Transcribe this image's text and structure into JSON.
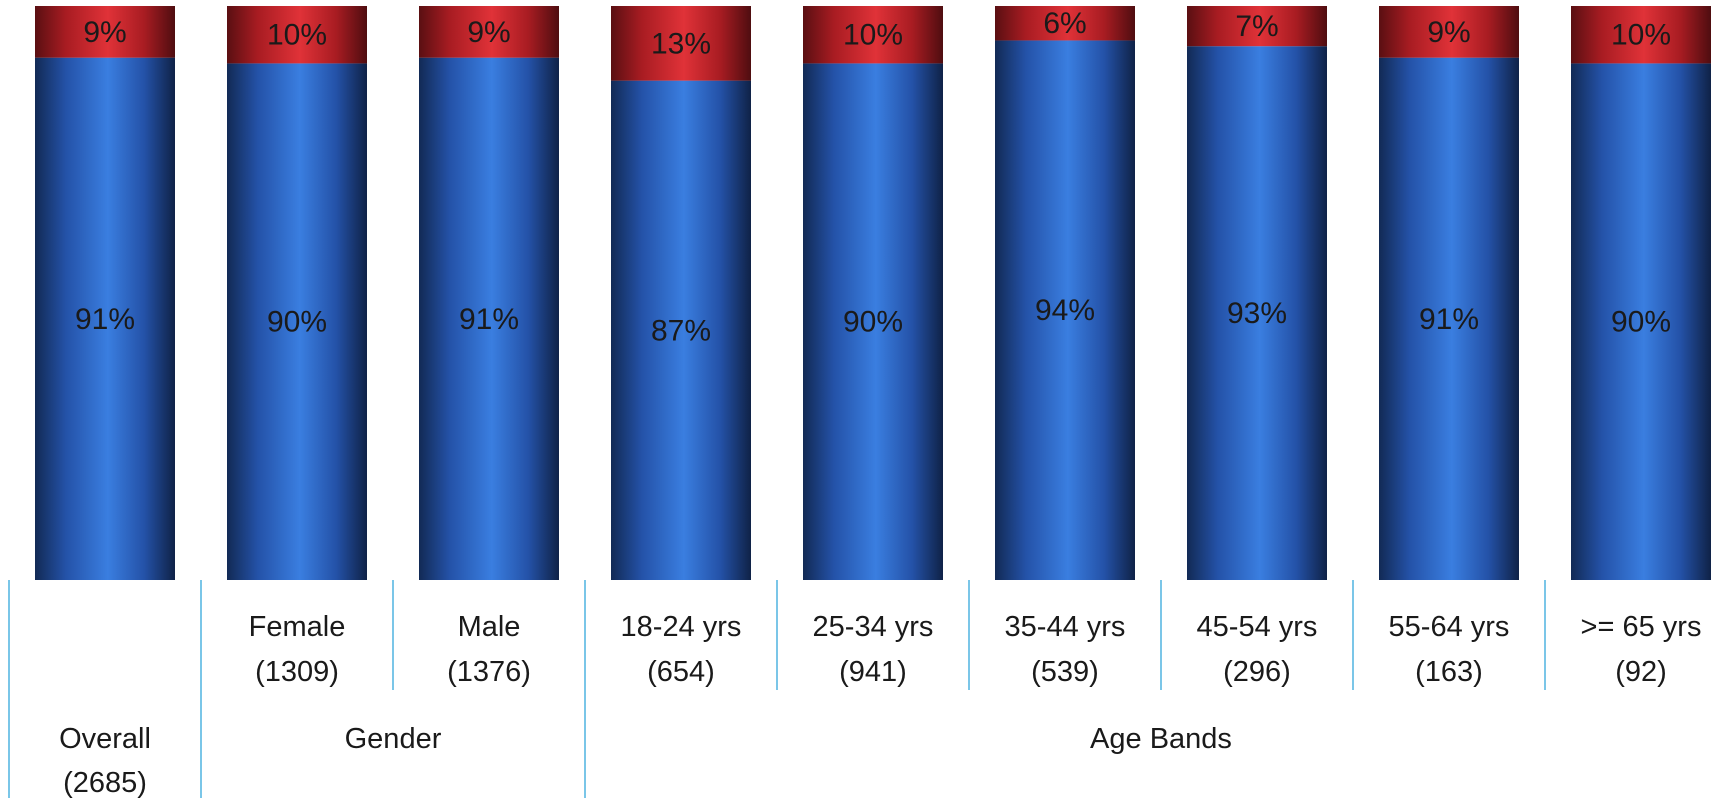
{
  "chart_data": {
    "type": "bar",
    "stacked": true,
    "percent_stacked": true,
    "categories": [
      {
        "line1": "",
        "line2": "",
        "group_label_1": "Overall",
        "group_label_2": "(2685)"
      },
      {
        "line1": "Female",
        "line2": "(1309)"
      },
      {
        "line1": "Male",
        "line2": "(1376)"
      },
      {
        "line1": "18-24 yrs",
        "line2": "(654)"
      },
      {
        "line1": "25-34 yrs",
        "line2": "(941)"
      },
      {
        "line1": "35-44 yrs",
        "line2": "(539)"
      },
      {
        "line1": "45-54 yrs",
        "line2": "(296)"
      },
      {
        "line1": "55-64 yrs",
        "line2": "(163)"
      },
      {
        "line1": ">= 65 yrs",
        "line2": "(92)"
      }
    ],
    "groups": [
      {
        "label": "Gender",
        "span": [
          1,
          2
        ]
      },
      {
        "label": "Age Bands",
        "span": [
          3,
          8
        ]
      }
    ],
    "series": [
      {
        "color": "#2f6fd6",
        "values": [
          91,
          90,
          91,
          87,
          90,
          94,
          93,
          91,
          90
        ],
        "labels": [
          "91%",
          "90%",
          "91%",
          "87%",
          "90%",
          "94%",
          "93%",
          "91%",
          "90%"
        ]
      },
      {
        "color": "#d8262e",
        "values": [
          9,
          10,
          9,
          13,
          10,
          6,
          7,
          9,
          10
        ],
        "labels": [
          "9%",
          "10%",
          "9%",
          "13%",
          "10%",
          "6%",
          "7%",
          "9%",
          "10%"
        ]
      }
    ],
    "ylim": [
      0,
      100
    ],
    "grid": false,
    "legend": "none"
  }
}
